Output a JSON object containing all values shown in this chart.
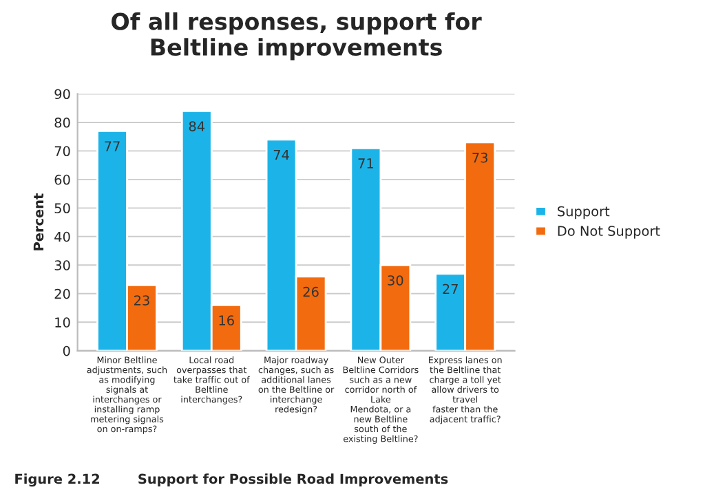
{
  "chart_data": {
    "type": "bar",
    "title": "Of all responses, support for\nBeltline improvements",
    "ylabel": "Percent",
    "categories": [
      "Minor Beltline\nadjustments, such\nas modifying\nsignals at\ninterchanges or\ninstalling ramp\nmetering signals\non on-ramps?",
      "Local road\noverpasses that\ntake traffic out of\nBeltline\ninterchanges?",
      "Major roadway\nchanges, such as\nadditional lanes\non the Beltline or\ninterchange\nredesign?",
      "New Outer\nBeltline Corridors\nsuch as a new\ncorridor north of\nLake\nMendota, or a\nnew Beltline\nsouth of the\nexisting Beltline?",
      "Express lanes on\nthe Beltline that\ncharge a toll yet\nallow drivers to\ntravel\nfaster than the\nadjacent traffic?"
    ],
    "series": [
      {
        "name": "Support",
        "color": "#1cb4e8",
        "values": [
          77,
          84,
          74,
          71,
          27
        ]
      },
      {
        "name": "Do Not Support",
        "color": "#f26b0f",
        "values": [
          23,
          16,
          26,
          30,
          73
        ]
      }
    ],
    "ylim": [
      0,
      90
    ],
    "yticks": [
      0,
      10,
      20,
      30,
      40,
      50,
      60,
      70,
      80,
      90
    ],
    "grid": "y",
    "legend": "right",
    "data_labels": true,
    "annotations": [
      "Figure 2.12        Support for Possible Road Improvements"
    ]
  }
}
